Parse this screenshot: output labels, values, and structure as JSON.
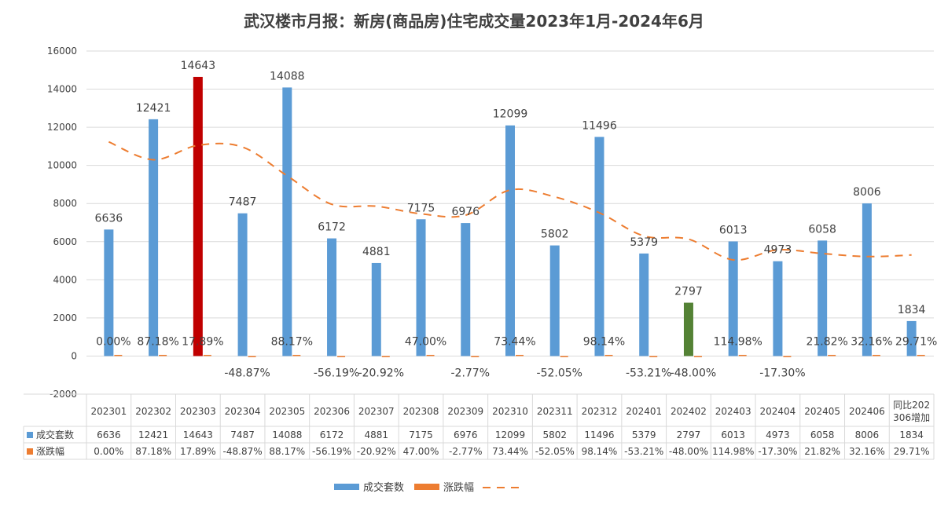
{
  "colors": {
    "bar": "#5b9bd5",
    "highlight_max": "#c00000",
    "highlight_min": "#548235",
    "pct": "#ed7d31",
    "trend": "#ed7d31",
    "grid": "#d9d9d9",
    "text": "#404040"
  },
  "chart_data": {
    "type": "bar",
    "title": "武汉楼市月报：新房(商品房)住宅成交量2023年1月-2024年6月",
    "categories": [
      "202301",
      "202302",
      "202303",
      "202304",
      "202305",
      "202306",
      "202307",
      "202308",
      "202309",
      "202310",
      "202311",
      "202312",
      "202401",
      "202402",
      "202403",
      "202404",
      "202405",
      "202406",
      "同比202306增加"
    ],
    "ylim": [
      -2000,
      16000
    ],
    "yticks": [
      "16000",
      "14000",
      "12000",
      "10000",
      "8000",
      "6000",
      "4000",
      "2000",
      "0",
      "-2000"
    ],
    "grid": true,
    "legend_position": "bottom",
    "series": [
      {
        "name": "成交套数",
        "values": [
          6636,
          12421,
          14643,
          7487,
          14088,
          6172,
          4881,
          7175,
          6976,
          12099,
          5802,
          11496,
          5379,
          2797,
          6013,
          4973,
          6058,
          8006,
          1834
        ],
        "labels": [
          "6636",
          "12421",
          "14643",
          "7487",
          "14088",
          "6172",
          "4881",
          "7175",
          "6976",
          "12099",
          "5802",
          "11496",
          "5379",
          "2797",
          "6013",
          "4973",
          "6058",
          "8006",
          "1834"
        ],
        "highlight": {
          "max_index": 2,
          "min_index": 13
        }
      },
      {
        "name": "涨跌幅",
        "values": [
          0.0,
          87.18,
          17.89,
          -48.87,
          88.17,
          -56.19,
          -20.92,
          47.0,
          -2.77,
          73.44,
          -52.05,
          98.14,
          -53.21,
          -48.0,
          114.98,
          -17.3,
          21.82,
          32.16,
          29.71
        ],
        "labels": [
          "0.00%",
          "87.18%",
          "17.89%",
          "-48.87%",
          "88.17%",
          "-56.19%",
          "-20.92%",
          "47.00%",
          "-2.77%",
          "73.44%",
          "-52.05%",
          "98.14%",
          "-53.21%",
          "-48.00%",
          "114.98%",
          "-17.30%",
          "21.82%",
          "32.16%",
          "29.71%"
        ]
      }
    ],
    "trendline": {
      "type": "polynomial",
      "style": "dashed",
      "name": ""
    }
  }
}
